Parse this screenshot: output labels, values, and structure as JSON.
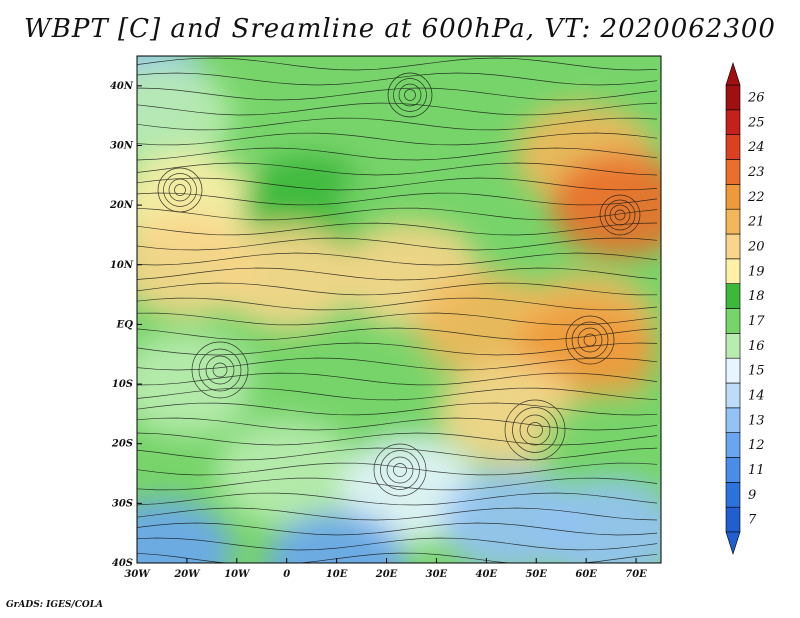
{
  "title": "WBPT [C] and Sreamline at 600hPa, VT: 2020062300",
  "credit": "GrADS: IGES/COLA",
  "chart_data": {
    "type": "heatmap",
    "title": "WBPT [C] and Sreamline at 600hPa, VT: 2020062300",
    "variable": "WBPT",
    "units": "C",
    "level": "600hPa",
    "valid_time": "2020062300",
    "xlim": [
      -30,
      75
    ],
    "ylim": [
      -40,
      45
    ],
    "x_ticks": [
      {
        "value": -30,
        "label": "30W"
      },
      {
        "value": -20,
        "label": "20W"
      },
      {
        "value": -10,
        "label": "10W"
      },
      {
        "value": 0,
        "label": "0"
      },
      {
        "value": 10,
        "label": "10E"
      },
      {
        "value": 20,
        "label": "20E"
      },
      {
        "value": 30,
        "label": "30E"
      },
      {
        "value": 40,
        "label": "40E"
      },
      {
        "value": 50,
        "label": "50E"
      },
      {
        "value": 60,
        "label": "60E"
      },
      {
        "value": 70,
        "label": "70E"
      }
    ],
    "y_ticks": [
      {
        "value": 40,
        "label": "40N"
      },
      {
        "value": 30,
        "label": "30N"
      },
      {
        "value": 20,
        "label": "20N"
      },
      {
        "value": 10,
        "label": "10N"
      },
      {
        "value": 0,
        "label": "EQ"
      },
      {
        "value": -10,
        "label": "10S"
      },
      {
        "value": -20,
        "label": "20S"
      },
      {
        "value": -30,
        "label": "30S"
      },
      {
        "value": -40,
        "label": "40S"
      }
    ],
    "colorbar": {
      "labels": [
        "7",
        "9",
        "11",
        "12",
        "13",
        "14",
        "15",
        "16",
        "17",
        "18",
        "19",
        "20",
        "21",
        "22",
        "23",
        "24",
        "25",
        "26"
      ],
      "colors": [
        "#1f5fcf",
        "#2c72dc",
        "#4a8de8",
        "#6aa6ef",
        "#93c2f5",
        "#bedcfa",
        "#e6f5ff",
        "#b9ecb0",
        "#77d46a",
        "#3cb83a",
        "#fff0a8",
        "#f8d58a",
        "#f2b75b",
        "#ee9a3a",
        "#e96f2a",
        "#dc4020",
        "#c4211b",
        "#a00f12"
      ]
    },
    "wbpt_regions": [
      {
        "lon": -30,
        "lat": 40,
        "value": 13
      },
      {
        "lon": -25,
        "lat": 35,
        "value": 16
      },
      {
        "lon": 15,
        "lat": 38,
        "value": 17
      },
      {
        "lon": 45,
        "lat": 40,
        "value": 17
      },
      {
        "lon": -20,
        "lat": 20,
        "value": 19
      },
      {
        "lon": 5,
        "lat": 20,
        "value": 18
      },
      {
        "lon": 25,
        "lat": 20,
        "value": 17
      },
      {
        "lon": 60,
        "lat": 28,
        "value": 21
      },
      {
        "lon": 67,
        "lat": 20,
        "value": 23
      },
      {
        "lon": -20,
        "lat": 10,
        "value": 20
      },
      {
        "lon": 0,
        "lat": 8,
        "value": 20
      },
      {
        "lon": 25,
        "lat": 8,
        "value": 20
      },
      {
        "lon": 40,
        "lat": 0,
        "value": 21
      },
      {
        "lon": 60,
        "lat": 0,
        "value": 21
      },
      {
        "lon": 60,
        "lat": -5,
        "value": 22
      },
      {
        "lon": -20,
        "lat": -10,
        "value": 16
      },
      {
        "lon": 5,
        "lat": -12,
        "value": 17
      },
      {
        "lon": 20,
        "lat": -15,
        "value": 17
      },
      {
        "lon": 45,
        "lat": -15,
        "value": 20
      },
      {
        "lon": 65,
        "lat": -20,
        "value": 17
      },
      {
        "lon": 0,
        "lat": -25,
        "value": 16
      },
      {
        "lon": 25,
        "lat": -28,
        "value": 15
      },
      {
        "lon": 45,
        "lat": -33,
        "value": 13
      },
      {
        "lon": 65,
        "lat": -35,
        "value": 13
      },
      {
        "lon": -25,
        "lat": -38,
        "value": 12
      },
      {
        "lon": 10,
        "lat": -40,
        "value": 12
      }
    ]
  }
}
